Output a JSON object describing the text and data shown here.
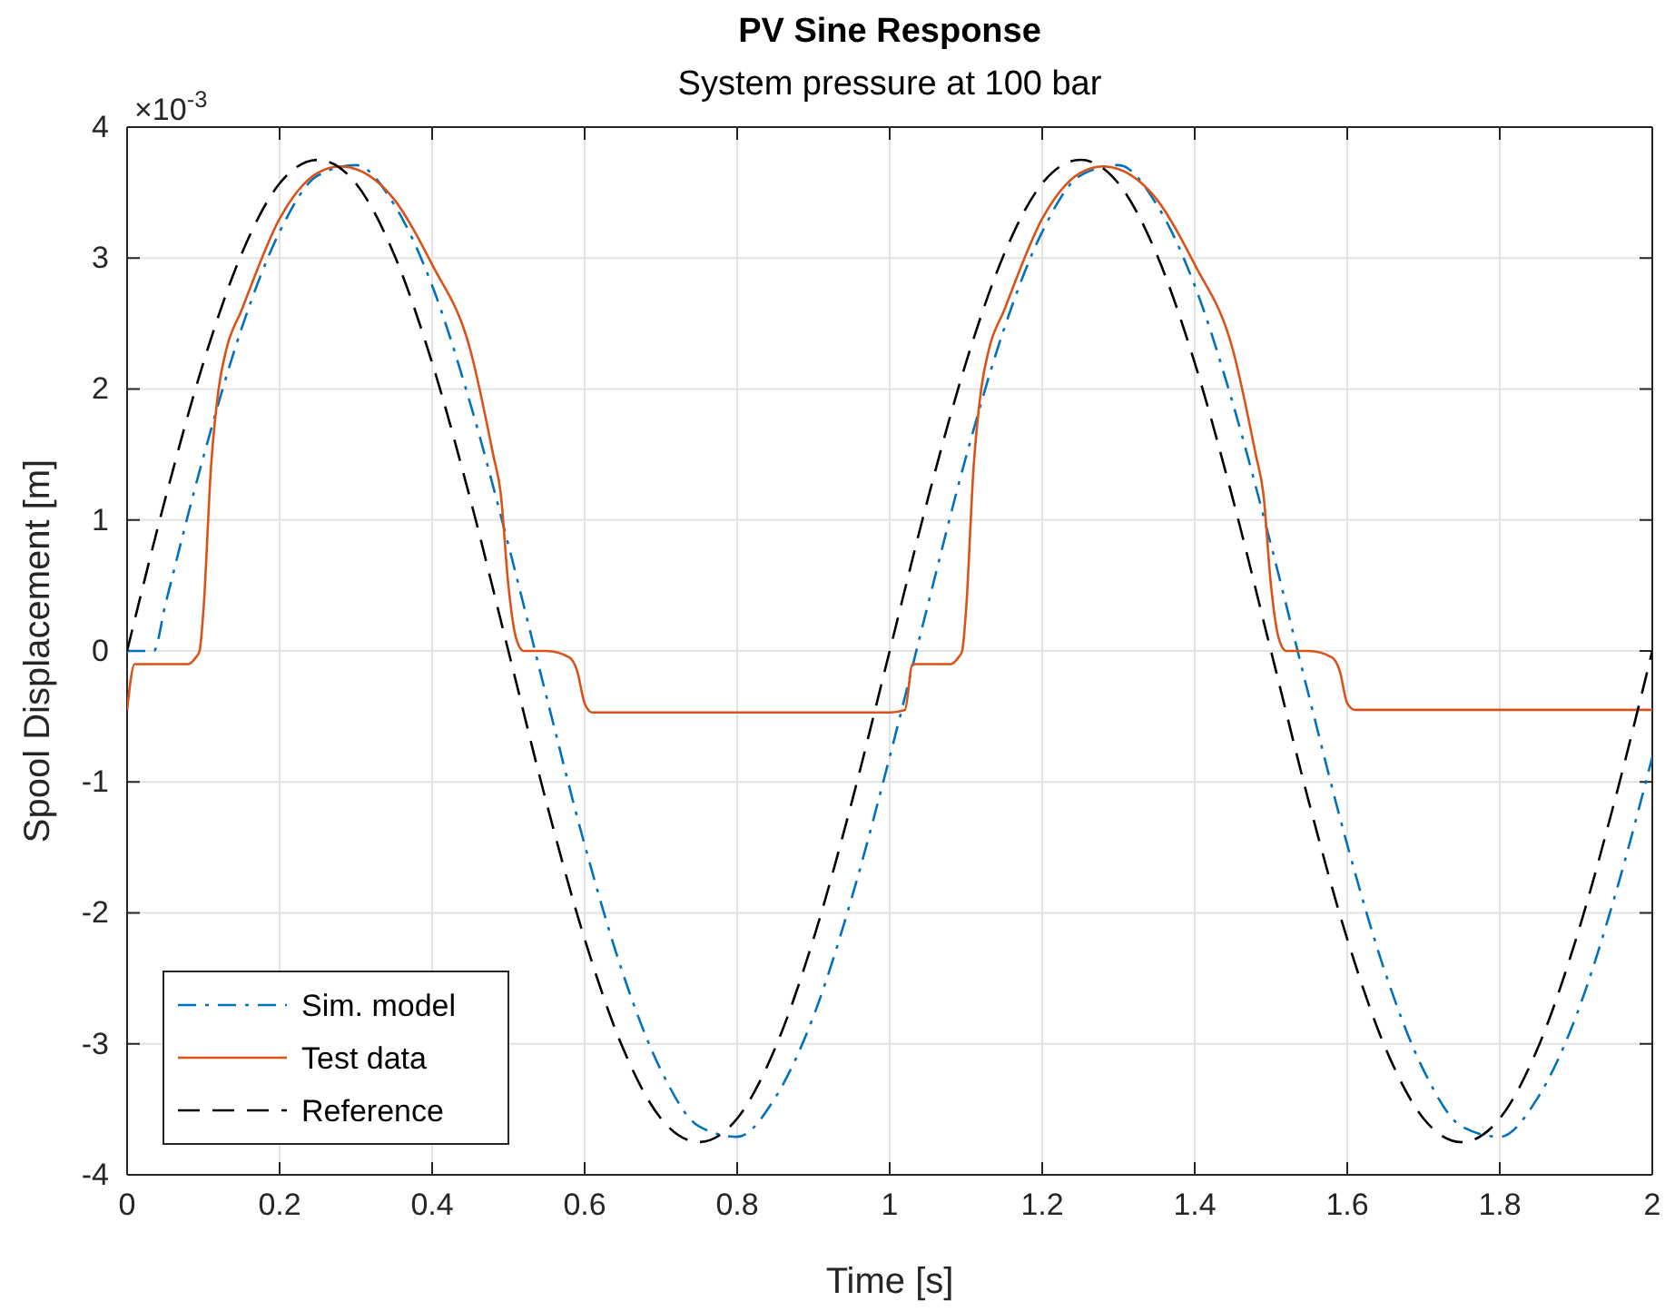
{
  "chart_data": {
    "type": "line",
    "title": "PV Sine Response",
    "subtitle": "System pressure at 100 bar",
    "xlabel": "Time [s]",
    "ylabel": "Spool Displacement [m]",
    "annotations": [
      "×10$^{-3}$"
    ],
    "xlim": [
      0,
      2
    ],
    "xticks": [
      0,
      0.2,
      0.4,
      0.6,
      0.8,
      1,
      1.2,
      1.4,
      1.6,
      1.8,
      2
    ],
    "ylim": [
      -4,
      4
    ],
    "yticks": [
      -4,
      -3,
      -2,
      -1,
      0,
      1,
      2,
      3,
      4
    ],
    "grid": true,
    "legend": "bottom left",
    "series": [
      {
        "name": "Sim. model",
        "color": "#0072bd",
        "line_style": "dashdot",
        "x": [
          0,
          0.035,
          0.05,
          0.1,
          0.15,
          0.2,
          0.25,
          0.3,
          0.35,
          0.4,
          0.45,
          0.5,
          0.55,
          0.6,
          0.65,
          0.7,
          0.75,
          0.8,
          0.85,
          0.9,
          0.95,
          1,
          1.05,
          1.1,
          1.15,
          1.2,
          1.25,
          1.3,
          1.35,
          1.4,
          1.45,
          1.5,
          1.55,
          1.6,
          1.65,
          1.7,
          1.75,
          1.8,
          1.85,
          1.9,
          1.95,
          2
        ],
        "values": [
          0,
          0,
          0.35,
          1.48,
          2.46,
          3.2,
          3.63,
          3.71,
          3.41,
          2.79,
          1.89,
          0.81,
          -0.35,
          -1.48,
          -2.46,
          -3.2,
          -3.63,
          -3.71,
          -3.41,
          -2.79,
          -1.89,
          -0.81,
          0.35,
          1.48,
          2.46,
          3.2,
          3.63,
          3.71,
          3.41,
          2.79,
          1.89,
          0.81,
          -0.35,
          -1.48,
          -2.46,
          -3.2,
          -3.63,
          -3.71,
          -3.41,
          -2.79,
          -1.89,
          -0.81
        ]
      },
      {
        "name": "Test data",
        "color": "#d95319",
        "line_style": "solid",
        "x": [
          0,
          0.01,
          0.02,
          0.04,
          0.08,
          0.09,
          0.095,
          0.1,
          0.11,
          0.12,
          0.13,
          0.15,
          0.2,
          0.25,
          0.28,
          0.3,
          0.35,
          0.4,
          0.45,
          0.48,
          0.49,
          0.5,
          0.51,
          0.52,
          0.55,
          0.58,
          0.59,
          0.6,
          0.61,
          0.62,
          0.7,
          0.8,
          0.9,
          1,
          1.02,
          1.03,
          1.04,
          1.08,
          1.09,
          1.095,
          1.1,
          1.11,
          1.12,
          1.13,
          1.15,
          1.2,
          1.25,
          1.28,
          1.3,
          1.35,
          1.4,
          1.45,
          1.48,
          1.49,
          1.5,
          1.51,
          1.52,
          1.55,
          1.58,
          1.59,
          1.6,
          1.61,
          1.62,
          1.7,
          1.8,
          1.9,
          2
        ],
        "values": [
          -0.45,
          -0.1,
          -0.1,
          -0.1,
          -0.1,
          -0.05,
          0,
          0.3,
          1.4,
          2,
          2.3,
          2.6,
          3.3,
          3.65,
          3.7,
          3.68,
          3.45,
          2.95,
          2.3,
          1.5,
          1.2,
          0.5,
          0.1,
          0,
          0,
          -0.05,
          -0.15,
          -0.4,
          -0.47,
          -0.47,
          -0.47,
          -0.47,
          -0.47,
          -0.47,
          -0.45,
          -0.1,
          -0.1,
          -0.1,
          -0.05,
          0,
          0.3,
          1.4,
          2,
          2.3,
          2.6,
          3.3,
          3.65,
          3.7,
          3.68,
          3.45,
          2.95,
          2.3,
          1.5,
          1.2,
          0.5,
          0.1,
          0,
          0,
          -0.05,
          -0.15,
          -0.4,
          -0.45,
          -0.45,
          -0.45,
          -0.45,
          -0.45,
          -0.45
        ]
      },
      {
        "name": "Reference",
        "color": "#000000",
        "line_style": "dashed",
        "x": [
          0,
          0.05,
          0.1,
          0.15,
          0.2,
          0.25,
          0.3,
          0.35,
          0.4,
          0.45,
          0.5,
          0.55,
          0.6,
          0.65,
          0.7,
          0.75,
          0.8,
          0.85,
          0.9,
          0.95,
          1,
          1.05,
          1.1,
          1.15,
          1.2,
          1.25,
          1.3,
          1.35,
          1.4,
          1.45,
          1.5,
          1.55,
          1.6,
          1.65,
          1.7,
          1.75,
          1.8,
          1.85,
          1.9,
          1.95,
          2
        ],
        "values": [
          0,
          1.16,
          2.2,
          3.03,
          3.57,
          3.75,
          3.57,
          3.03,
          2.2,
          1.16,
          0,
          -1.16,
          -2.2,
          -3.03,
          -3.57,
          -3.75,
          -3.57,
          -3.03,
          -2.2,
          -1.16,
          0,
          1.16,
          2.2,
          3.03,
          3.57,
          3.75,
          3.57,
          3.03,
          2.2,
          1.16,
          0,
          -1.16,
          -2.2,
          -3.03,
          -3.57,
          -3.75,
          -3.57,
          -3.03,
          -2.2,
          -1.16,
          0
        ]
      }
    ]
  }
}
